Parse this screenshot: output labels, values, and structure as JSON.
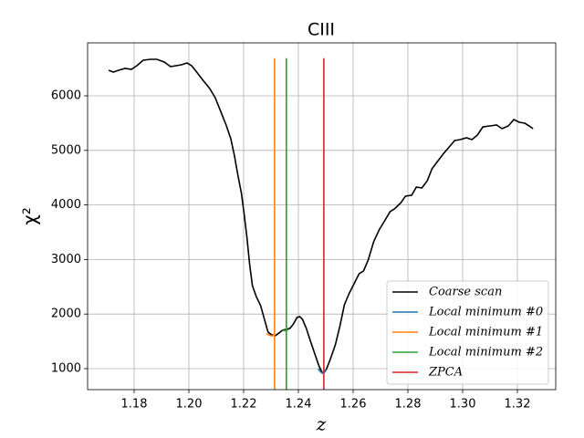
{
  "chart_data": {
    "type": "line",
    "title": "CIII",
    "x_label": "z",
    "y_label": "χ²",
    "xlim": [
      1.163,
      1.334
    ],
    "ylim": [
      615,
      6970
    ],
    "xticks": [
      1.18,
      {
        "value": 1.2,
        "label": "1.20"
      },
      1.22,
      1.24,
      1.26,
      1.28,
      {
        "value": 1.3,
        "label": "1.30"
      },
      1.32
    ],
    "yticks": [
      1000,
      2000,
      3000,
      4000,
      5000,
      6000
    ],
    "grid": true,
    "legend": "lower right",
    "series": [
      {
        "name": "Coarse scan",
        "color": "#000000",
        "x": [
          1.1707,
          1.1724,
          1.1743,
          1.1767,
          1.179,
          1.181,
          1.1833,
          1.186,
          1.1883,
          1.191,
          1.1933,
          1.1953,
          1.1973,
          1.1993,
          1.201,
          1.2026,
          1.2049,
          1.2076,
          1.2096,
          1.2116,
          1.2136,
          1.2153,
          1.2166,
          1.2179,
          1.2192,
          1.2202,
          1.2212,
          1.2222,
          1.2232,
          1.2246,
          1.2262,
          1.2276,
          1.2289,
          1.2302,
          1.2316,
          1.2329,
          1.2342,
          1.2355,
          1.2369,
          1.2382,
          1.2395,
          1.2405,
          1.2415,
          1.2429,
          1.2442,
          1.2459,
          1.2475,
          1.2488,
          1.2502,
          1.2515,
          1.2535,
          1.2552,
          1.2568,
          1.2585,
          1.2605,
          1.2622,
          1.2638,
          1.2655,
          1.2675,
          1.2695,
          1.2715,
          1.2735,
          1.2751,
          1.2775,
          1.2791,
          1.2814,
          1.2831,
          1.2851,
          1.2871,
          1.2888,
          1.2908,
          1.2931,
          1.2951,
          1.2971,
          1.2991,
          1.3014,
          1.3034,
          1.3054,
          1.3074,
          1.31,
          1.3124,
          1.3144,
          1.3167,
          1.3187,
          1.3207,
          1.3227,
          1.3243,
          1.3257
        ],
        "values": [
          6468,
          6435,
          6468,
          6502,
          6485,
          6552,
          6652,
          6669,
          6669,
          6619,
          6535,
          6552,
          6569,
          6602,
          6552,
          6451,
          6301,
          6134,
          5967,
          5716,
          5465,
          5214,
          4913,
          4545,
          4211,
          3826,
          3408,
          2908,
          2522,
          2322,
          2155,
          1904,
          1670,
          1620,
          1603,
          1653,
          1704,
          1720,
          1737,
          1820,
          1937,
          1954,
          1904,
          1737,
          1536,
          1285,
          1051,
          917,
          984,
          1151,
          1436,
          1787,
          2171,
          2372,
          2572,
          2740,
          2790,
          2990,
          3325,
          3542,
          3709,
          3876,
          3927,
          4044,
          4161,
          4178,
          4328,
          4311,
          4445,
          4662,
          4796,
          4947,
          5064,
          5181,
          5197,
          5231,
          5197,
          5281,
          5431,
          5448,
          5465,
          5398,
          5448,
          5565,
          5515,
          5498,
          5448,
          5398
        ]
      },
      {
        "name": "Local minimum #0",
        "color": "#1f77b4",
        "x": [
          1.2472,
          1.248,
          1.2488,
          1.2496,
          1.2503
        ],
        "values": [
          1000,
          945,
          915,
          935,
          985
        ]
      },
      {
        "name": "Local minimum #1",
        "color": "#ff7f0e",
        "x": [
          1.2284,
          1.2295,
          1.2305,
          1.2315,
          null,
          1.2313,
          1.2313
        ],
        "values": [
          1640,
          1610,
          1600,
          1615,
          null,
          0,
          6690
        ]
      },
      {
        "name": "Local minimum #2",
        "color": "#2ca02c",
        "x": [
          1.2342,
          1.2349,
          1.2356,
          1.2364,
          null,
          1.2356,
          1.2356
        ],
        "values": [
          1705,
          1695,
          1700,
          1715,
          null,
          0,
          6690
        ]
      },
      {
        "name": "ZPCA",
        "color": "#d62728",
        "x": [
          1.2493,
          1.2493
        ],
        "values": [
          0,
          6690
        ]
      }
    ]
  }
}
